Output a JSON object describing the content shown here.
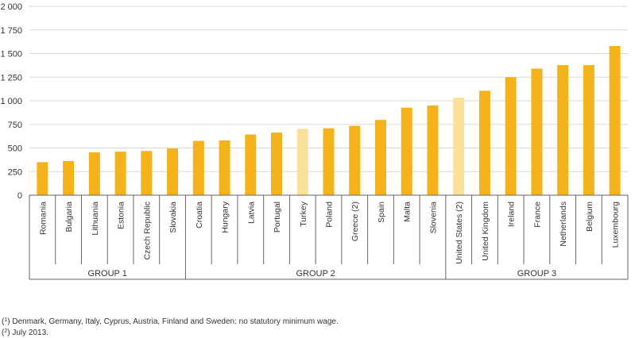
{
  "chart_data": {
    "type": "bar",
    "categories": [
      "Romania",
      "Bulgaria",
      "Lithuania",
      "Estonia",
      "Czech Republic",
      "Slovakia",
      "Croatia",
      "Hungary",
      "Latvia",
      "Portugal",
      "Turkey",
      "Poland",
      "Greece (2)",
      "Spain",
      "Malta",
      "Slovenia",
      "United States (2)",
      "United Kingdom",
      "Ireland",
      "France",
      "Netherlands",
      "Belgium",
      "Luxembourg"
    ],
    "values": [
      350,
      362,
      455,
      461,
      468,
      495,
      575,
      580,
      643,
      663,
      703,
      709,
      735,
      797,
      927,
      950,
      1033,
      1106,
      1249,
      1341,
      1378,
      1378,
      1580
    ],
    "highlight": [
      false,
      false,
      false,
      false,
      false,
      false,
      false,
      false,
      false,
      false,
      true,
      false,
      false,
      false,
      false,
      false,
      true,
      false,
      false,
      false,
      false,
      false,
      false
    ],
    "ylim": [
      0,
      2000
    ],
    "yticks": [
      "0",
      "250",
      "500",
      "750",
      "1 000",
      "1 250",
      "1 500",
      "1 750",
      "2 000"
    ],
    "ytick_values": [
      0,
      250,
      500,
      750,
      1000,
      1250,
      1500,
      1750,
      2000
    ],
    "groups": [
      {
        "label": "GROUP 1",
        "start": 0,
        "end": 5
      },
      {
        "label": "GROUP 2",
        "start": 6,
        "end": 15
      },
      {
        "label": "GROUP 3",
        "start": 16,
        "end": 22
      }
    ],
    "grid": true,
    "colors": {
      "bar": "#F5B21B",
      "bar_highlight": "#FBE09A",
      "grid": "#d9d9d9",
      "axis": "#666666"
    }
  },
  "footnotes": {
    "note1_marker": "1",
    "note1_text": "Denmark, Germany, Italy, Cyprus, Austria, Finland and Sweden: no statutory minimum wage.",
    "note2_marker": "2",
    "note2_text": "July 2013."
  }
}
